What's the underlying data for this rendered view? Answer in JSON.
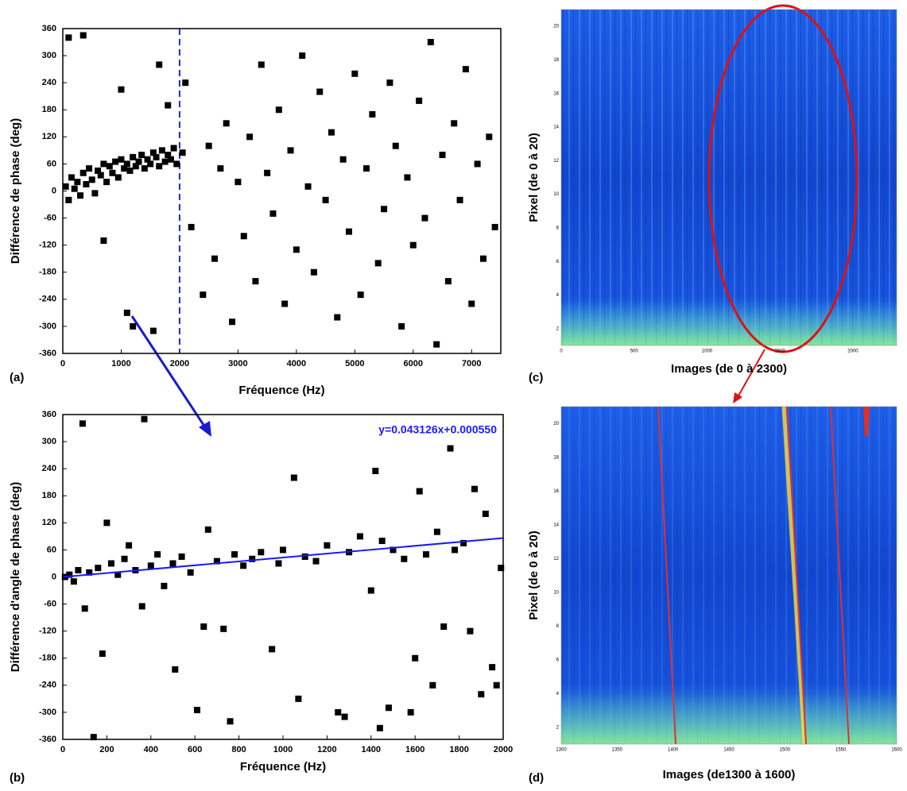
{
  "chart_data": [
    {
      "type": "scatter",
      "panel_label": "(a)",
      "x_label": "Fréquence (Hz)",
      "y_label": "Différence de phase (deg)",
      "color": "#000000",
      "xlim": [
        0,
        7500
      ],
      "ylim": [
        -360,
        360
      ],
      "xticks": [
        0,
        1000,
        2000,
        3000,
        4000,
        5000,
        6000,
        7000
      ],
      "yticks": [
        -360,
        -300,
        -240,
        -180,
        -120,
        -60,
        0,
        60,
        120,
        180,
        240,
        300,
        360
      ],
      "reference_line": {
        "x": 2000,
        "color": "#1f2fbf",
        "style": "dashed"
      },
      "x": [
        50,
        100,
        150,
        200,
        250,
        300,
        350,
        400,
        450,
        500,
        550,
        600,
        650,
        700,
        750,
        800,
        850,
        900,
        950,
        1000,
        1050,
        1100,
        1150,
        1200,
        1250,
        1300,
        1350,
        1400,
        1450,
        1500,
        1550,
        1600,
        1650,
        1700,
        1750,
        1800,
        1850,
        1900,
        1950,
        2050,
        100,
        350,
        700,
        1000,
        1100,
        1200,
        1550,
        1650,
        1800,
        2100,
        2200,
        2400,
        2500,
        2600,
        2700,
        2800,
        2900,
        3000,
        3100,
        3200,
        3300,
        3400,
        3500,
        3600,
        3700,
        3800,
        3900,
        4000,
        4100,
        4200,
        4300,
        4400,
        4500,
        4600,
        4700,
        4800,
        4900,
        5000,
        5100,
        5200,
        5300,
        5400,
        5500,
        5600,
        5700,
        5800,
        5900,
        6000,
        6100,
        6200,
        6300,
        6400,
        6500,
        6600,
        6700,
        6800,
        6900,
        7000,
        7100,
        7200,
        7300,
        7400
      ],
      "values": [
        10,
        -20,
        30,
        5,
        20,
        -10,
        40,
        15,
        50,
        25,
        -5,
        45,
        35,
        60,
        20,
        55,
        40,
        65,
        30,
        70,
        50,
        60,
        45,
        75,
        55,
        65,
        80,
        50,
        70,
        60,
        85,
        75,
        55,
        90,
        65,
        80,
        70,
        95,
        60,
        85,
        340,
        345,
        -110,
        225,
        -270,
        -300,
        -310,
        280,
        190,
        240,
        -80,
        -230,
        100,
        -150,
        50,
        150,
        -290,
        20,
        -100,
        120,
        -200,
        280,
        40,
        -50,
        180,
        -250,
        90,
        -130,
        300,
        10,
        -180,
        220,
        -20,
        130,
        -280,
        70,
        -90,
        260,
        -230,
        50,
        170,
        -160,
        -40,
        240,
        100,
        -300,
        30,
        -120,
        200,
        -60,
        330,
        -340,
        80,
        -200,
        150,
        -20,
        270,
        -250,
        60,
        -150,
        120,
        -80
      ]
    },
    {
      "type": "scatter",
      "panel_label": "(b)",
      "x_label": "Fréquence (Hz)",
      "y_label": "Différence d'angle de phase (deg)",
      "color": "#000000",
      "xlim": [
        0,
        2000
      ],
      "ylim": [
        -360,
        360
      ],
      "xticks": [
        0,
        200,
        400,
        600,
        800,
        1000,
        1200,
        1400,
        1600,
        1800,
        2000
      ],
      "yticks": [
        -360,
        -300,
        -240,
        -180,
        -120,
        -60,
        0,
        60,
        120,
        180,
        240,
        300,
        360
      ],
      "annotation": "y=0.043126x+0.000550",
      "fit": {
        "slope": 0.043126,
        "intercept": 0.00055,
        "color": "#1a1aff"
      },
      "x": [
        10,
        30,
        50,
        70,
        90,
        100,
        120,
        140,
        160,
        180,
        200,
        220,
        250,
        280,
        300,
        330,
        360,
        370,
        400,
        430,
        460,
        500,
        510,
        540,
        580,
        610,
        640,
        660,
        700,
        730,
        760,
        780,
        820,
        860,
        900,
        950,
        980,
        1000,
        1050,
        1070,
        1100,
        1150,
        1200,
        1250,
        1280,
        1300,
        1350,
        1400,
        1420,
        1440,
        1450,
        1480,
        1500,
        1550,
        1580,
        1600,
        1620,
        1650,
        1680,
        1700,
        1730,
        1760,
        1780,
        1820,
        1850,
        1870,
        1900,
        1920,
        1950,
        1970,
        1990
      ],
      "values": [
        0,
        5,
        -10,
        15,
        340,
        -70,
        10,
        -355,
        20,
        -170,
        120,
        30,
        5,
        40,
        70,
        15,
        -65,
        350,
        25,
        50,
        -20,
        30,
        -205,
        45,
        10,
        -295,
        -110,
        105,
        35,
        -115,
        -320,
        50,
        25,
        40,
        55,
        -160,
        30,
        60,
        220,
        -270,
        45,
        35,
        70,
        -300,
        -310,
        55,
        90,
        -30,
        235,
        -335,
        80,
        -290,
        60,
        40,
        -300,
        -180,
        190,
        50,
        -240,
        100,
        -110,
        285,
        60,
        75,
        -120,
        195,
        -260,
        140,
        -200,
        -240,
        20
      ]
    },
    {
      "type": "heatmap",
      "panel_label": "(c)",
      "x_label": "Images (de 0 à 2300)",
      "y_label": "Pixel (de 0 à 20)",
      "xlim": [
        0,
        2300
      ],
      "ylim": [
        1,
        21
      ],
      "xticks": [
        0,
        500,
        1000,
        1500,
        2000
      ],
      "yticks": [
        2,
        4,
        6,
        8,
        10,
        12,
        14,
        16,
        18,
        20
      ]
    },
    {
      "type": "heatmap",
      "panel_label": "(d)",
      "x_label": "Images (de1300 à 1600)",
      "y_label": "Pixel (de 0 à 20)",
      "xlim": [
        1300,
        1600
      ],
      "ylim": [
        1,
        21
      ],
      "xticks": [
        1300,
        1350,
        1400,
        1450,
        1500,
        1550,
        1600
      ],
      "yticks": [
        2,
        4,
        6,
        8,
        10,
        12,
        14,
        16,
        18,
        20
      ]
    }
  ]
}
